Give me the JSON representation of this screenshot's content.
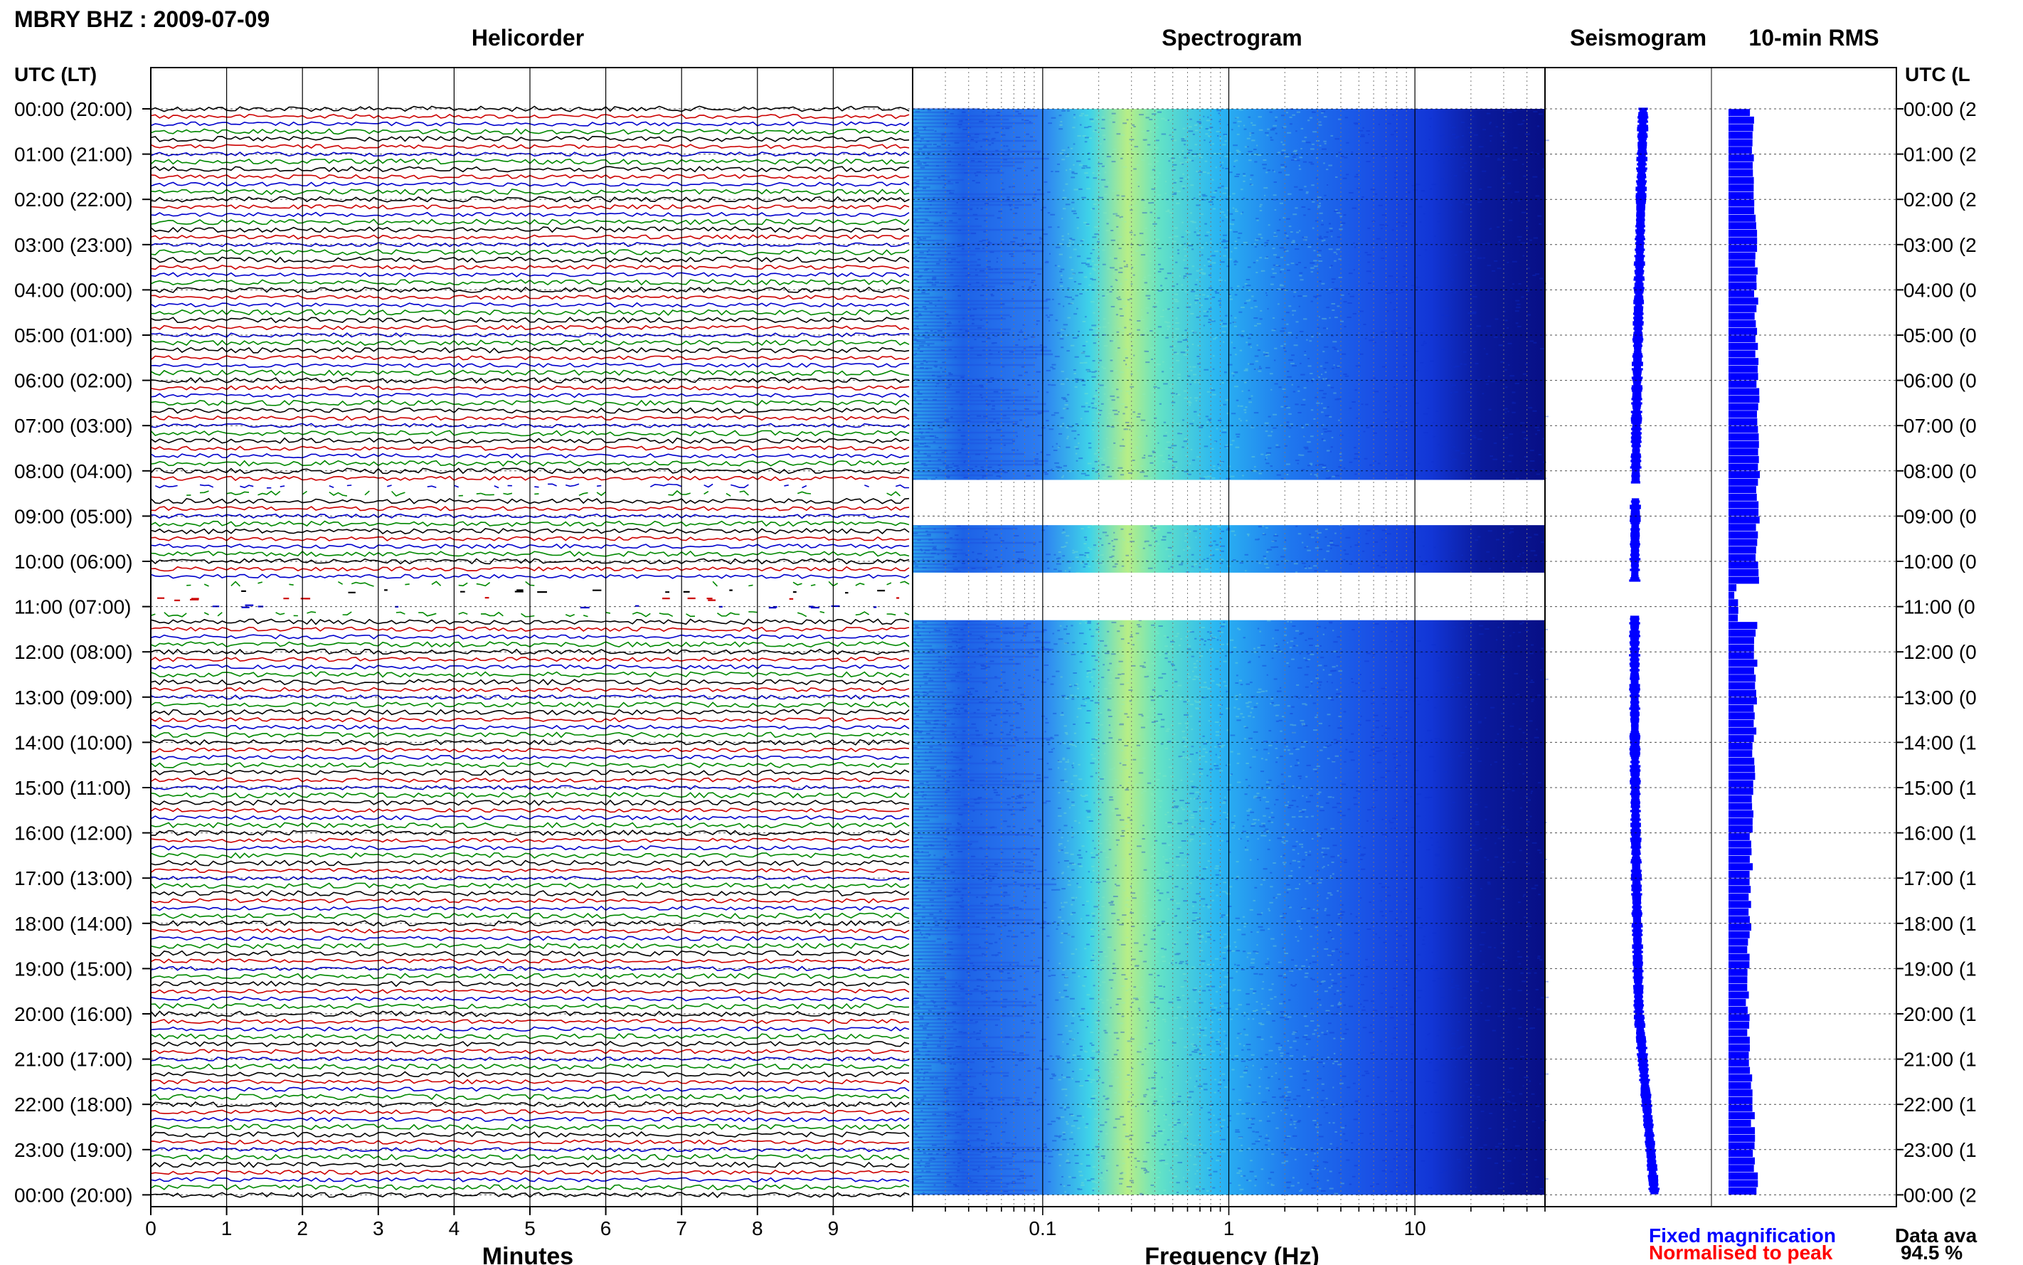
{
  "figure": {
    "title": "MBRY BHZ : 2009-07-09",
    "left_axis_label": "UTC (LT)",
    "right_axis_label": "UTC (L",
    "legend": {
      "fixed": "Fixed magnification",
      "normalised": "Normalised to peak",
      "availability_label": "Data ava",
      "availability_value": "94.5 %"
    },
    "colors": {
      "trace_cycle": [
        "#000000",
        "#cc0000",
        "#0000cc",
        "#008800"
      ],
      "seismogram": "#0000ff",
      "rms": "#0000ff",
      "fixed_text": "#0000ff",
      "normalised_text": "#ff0000"
    }
  },
  "chart_data": [
    {
      "type": "line",
      "panel": "helicorder",
      "title": "Helicorder",
      "xlabel": "Minutes",
      "x_ticks": [
        0,
        1,
        2,
        3,
        4,
        5,
        6,
        7,
        8,
        9
      ],
      "xlim": [
        0,
        10
      ],
      "grid": true,
      "time_labels": [
        "00:00 (20:00)",
        "01:00 (21:00)",
        "02:00 (22:00)",
        "03:00 (23:00)",
        "04:00 (00:00)",
        "05:00 (01:00)",
        "06:00 (02:00)",
        "07:00 (03:00)",
        "08:00 (04:00)",
        "09:00 (05:00)",
        "10:00 (06:00)",
        "11:00 (07:00)",
        "12:00 (08:00)",
        "13:00 (09:00)",
        "14:00 (10:00)",
        "15:00 (11:00)",
        "16:00 (12:00)",
        "17:00 (13:00)",
        "18:00 (14:00)",
        "19:00 (15:00)",
        "20:00 (16:00)",
        "21:00 (17:00)",
        "22:00 (18:00)",
        "23:00 (19:00)",
        "00:00 (20:00)"
      ],
      "right_time_labels": [
        "00:00 (2",
        "01:00 (2",
        "02:00 (2",
        "03:00 (2",
        "04:00 (0",
        "05:00 (0",
        "06:00 (0",
        "07:00 (0",
        "08:00 (0",
        "09:00 (0",
        "10:00 (0",
        "11:00 (0",
        "12:00 (0",
        "13:00 (0",
        "14:00 (1",
        "15:00 (1",
        "16:00 (1",
        "17:00 (1",
        "18:00 (1",
        "19:00 (1",
        "20:00 (1",
        "21:00 (1",
        "22:00 (1",
        "23:00 (1",
        "00:00 (2"
      ],
      "lines_per_hour": 6,
      "minutes_per_line": 10,
      "gaps_utc_hours": [
        [
          8.3,
          8.6
        ],
        [
          10.45,
          11.2
        ]
      ]
    },
    {
      "type": "heatmap",
      "panel": "spectrogram",
      "title": "Spectrogram",
      "xlabel": "Frequency (Hz)",
      "x_scale": "log",
      "xlim": [
        0.02,
        50
      ],
      "x_ticks": [
        0.1,
        1,
        10
      ],
      "peak_frequency_hz": 0.4,
      "gaps_utc_hours": [
        [
          8.2,
          9.2
        ],
        [
          10.25,
          11.3
        ]
      ]
    },
    {
      "type": "line",
      "panel": "seismogram",
      "title": "Seismogram"
    },
    {
      "type": "bar",
      "panel": "rms",
      "title": "10-min RMS"
    }
  ]
}
